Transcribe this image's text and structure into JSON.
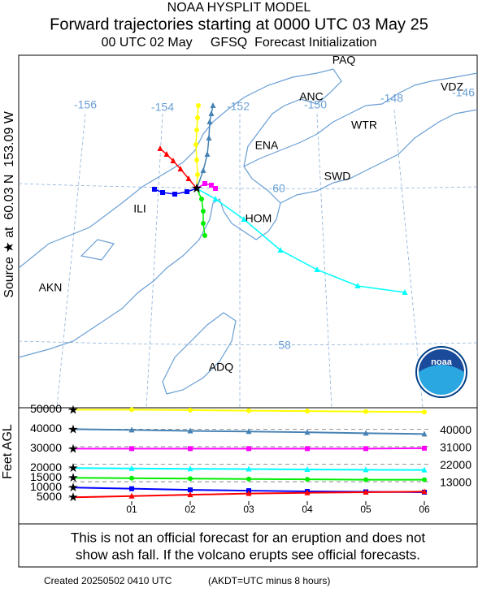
{
  "header": {
    "line1": "NOAA HYSPLIT MODEL",
    "line2": "Forward trajectories starting at 0000 UTC 03 May 25",
    "line3": "00 UTC 02 May     GFSQ  Forecast Initialization"
  },
  "side_label": "Source ★ at  60.03 N  153.09 W",
  "map": {
    "places": [
      "PAQ",
      "ANC",
      "VDZ",
      "WTR",
      "ENA",
      "SWD",
      "ILI",
      "HOM",
      "AKN",
      "ADQ"
    ],
    "lon_labels": [
      "-156",
      "-154",
      "-152",
      "-150",
      "-148",
      "-146"
    ],
    "lat_labels": [
      "60",
      "58"
    ],
    "logo_text": "noaa"
  },
  "chart_data": {
    "type": "line",
    "y_label": "Feet AGL",
    "xlim": [
      0,
      6
    ],
    "xticks": [
      {
        "value": 1,
        "label": "01"
      },
      {
        "value": 2,
        "label": "02"
      },
      {
        "value": 3,
        "label": "03"
      },
      {
        "value": 4,
        "label": "04"
      },
      {
        "value": 5,
        "label": "05"
      },
      {
        "value": 6,
        "label": "06"
      }
    ],
    "ylim": [
      3000,
      51000
    ],
    "yticks": [
      5000,
      10000,
      15000,
      20000,
      30000,
      40000,
      50000
    ],
    "ref_lines": [
      40000,
      31000,
      22000,
      13000
    ],
    "x": [
      0,
      1,
      2,
      3,
      4,
      5,
      6
    ],
    "series": [
      {
        "color": "#ffff00",
        "marker": "circle",
        "values": [
          50000,
          50000,
          49800,
          49500,
          49300,
          49000,
          48800
        ]
      },
      {
        "color": "#4682b4",
        "marker": "triangle",
        "values": [
          40000,
          39600,
          39100,
          38800,
          38400,
          37900,
          37500
        ]
      },
      {
        "color": "#ff00ff",
        "marker": "square",
        "values": [
          30000,
          30000,
          30000,
          30000,
          30000,
          30000,
          30200
        ]
      },
      {
        "color": "#00ffff",
        "marker": "triangle",
        "values": [
          20000,
          19800,
          19600,
          19500,
          19300,
          19100,
          19000
        ]
      },
      {
        "color": "#00ee00",
        "marker": "circle",
        "values": [
          15000,
          14800,
          14600,
          14400,
          14200,
          14000,
          14000
        ]
      },
      {
        "color": "#0000ff",
        "marker": "square",
        "values": [
          10000,
          9400,
          8800,
          8400,
          8000,
          7800,
          7600
        ]
      },
      {
        "color": "#ff0000",
        "marker": "triangle",
        "values": [
          5000,
          5600,
          6300,
          6900,
          7300,
          7600,
          7900
        ]
      }
    ]
  },
  "footer": {
    "line1": "This is not an official forecast for an eruption and does not",
    "line2": "show ash fall. If the volcano erupts see official forecasts.",
    "created": "Created 20250502 0410 UTC",
    "note": "(AKDT=UTC minus 8 hours)"
  }
}
